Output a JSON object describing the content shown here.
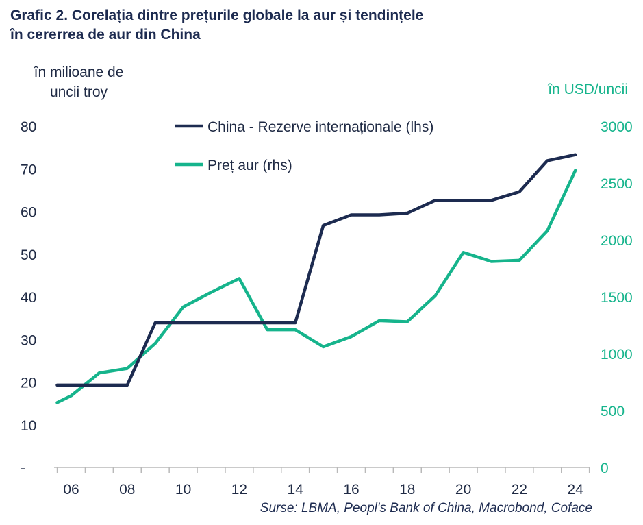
{
  "chart_data": {
    "type": "line",
    "title_line1": "Grafic 2. Corelația dintre prețurile globale la aur și tendințele",
    "title_line2": "în cererrea de aur din China",
    "ylabel_left": "în milioane de uncii troy",
    "ylabel_right": "în USD/uncii",
    "source": "Surse: LBMA, Peopl's Bank of China, Macrobond, Coface",
    "ylim_left": [
      0,
      80
    ],
    "ylim_right": [
      0,
      3000
    ],
    "yticks_left": [
      "-",
      "10",
      "20",
      "30",
      "40",
      "50",
      "60",
      "70",
      "80"
    ],
    "yticks_right": [
      "0",
      "500",
      "1000",
      "1500",
      "2000",
      "2500",
      "3000"
    ],
    "xticks": [
      "06",
      "08",
      "10",
      "12",
      "14",
      "16",
      "18",
      "20",
      "22",
      "24"
    ],
    "x": [
      2005.5,
      2006,
      2007,
      2008,
      2009,
      2010,
      2011,
      2012,
      2013,
      2014,
      2015,
      2016,
      2017,
      2018,
      2019,
      2020,
      2021,
      2022,
      2023,
      2024
    ],
    "series": [
      {
        "name": "China - Rezerve internaționale (lhs)",
        "axis": "left",
        "color": "#1d2b50",
        "x": [
          2005.5,
          2006,
          2007,
          2008,
          2009,
          2010,
          2011,
          2012,
          2013,
          2014,
          2015,
          2016,
          2017,
          2018,
          2019,
          2020,
          2021,
          2022,
          2023,
          2024
        ],
        "values": [
          19.3,
          19.3,
          19.3,
          19.3,
          33.9,
          33.9,
          33.9,
          33.9,
          33.9,
          33.9,
          56.7,
          59.2,
          59.2,
          59.6,
          62.6,
          62.6,
          62.6,
          64.6,
          71.9,
          73.3
        ]
      },
      {
        "name": "Preț aur (rhs)",
        "axis": "right",
        "color": "#16b48c",
        "x": [
          2005.5,
          2006,
          2007,
          2008,
          2009,
          2010,
          2011,
          2012,
          2013,
          2014,
          2015,
          2016,
          2017,
          2018,
          2019,
          2020,
          2021,
          2022,
          2023,
          2024
        ],
        "values": [
          570,
          630,
          830,
          870,
          1090,
          1410,
          1540,
          1660,
          1210,
          1210,
          1060,
          1150,
          1290,
          1280,
          1510,
          1890,
          1810,
          1820,
          2080,
          2610
        ]
      }
    ]
  }
}
